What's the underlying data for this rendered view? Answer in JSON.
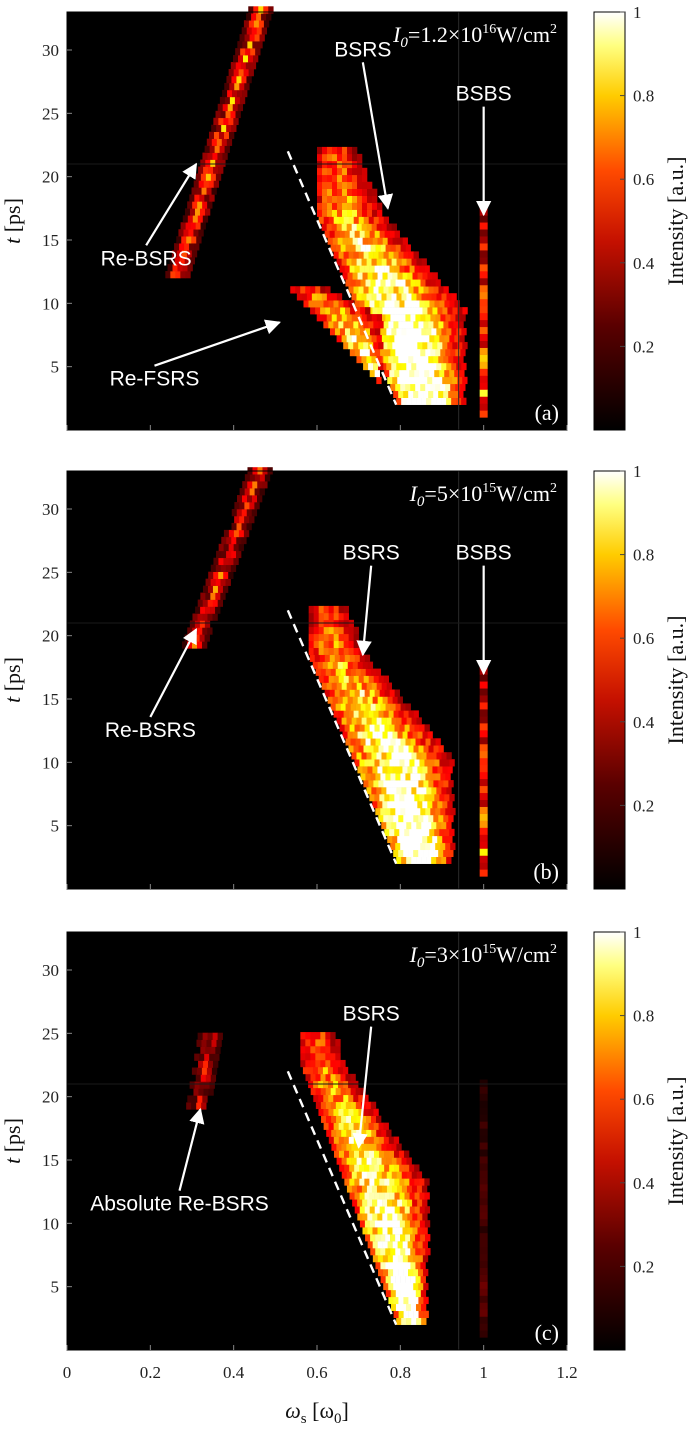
{
  "colors": {
    "background": "#000000",
    "annotation": "#ffffff",
    "dashed_line": "#ffffff"
  },
  "xlabel": {
    "sym": "ω",
    "sub": "s",
    "unit": "[ω",
    "unitsub": "0",
    "close": "]"
  },
  "chart_data": [
    {
      "type": "heatmap",
      "panel": "(a)",
      "title": {
        "sym": "I",
        "sub": "0",
        "text": "=1.2×10",
        "exp": "16",
        "unit": "W/cm",
        "unitexp": "2"
      },
      "ylabel": {
        "sym": "t",
        "unit": "[ps]"
      },
      "xlim": [
        0,
        1.2
      ],
      "ylim": [
        0,
        33
      ],
      "x_ticks": [
        "0",
        "0.2",
        "0.4",
        "0.6",
        "0.8",
        "1",
        "1.2"
      ],
      "y_ticks": [
        5,
        10,
        15,
        20,
        25,
        30
      ],
      "colorbar": {
        "label": "Intensity [a.u.]",
        "range": [
          0,
          1
        ],
        "ticks": [
          "0.2",
          "0.4",
          "0.6",
          "0.8",
          "1"
        ],
        "colormap": "hot"
      },
      "dashed_line": {
        "x": [
          0.53,
          0.79
        ],
        "y": [
          22,
          2
        ]
      },
      "annotations": [
        {
          "text": "Re-BSRS",
          "x": 0.19,
          "y": 13,
          "arrow_to": [
            0.31,
            21
          ]
        },
        {
          "text": "Re-FSRS",
          "x": 0.21,
          "y": 3.5,
          "arrow_to": [
            0.51,
            8.5
          ]
        },
        {
          "text": "BSRS",
          "x": 0.71,
          "y": 29.5,
          "arrow_to": [
            0.77,
            17.5
          ]
        },
        {
          "text": "BSBS",
          "x": 1.0,
          "y": 26,
          "arrow_to": [
            1.0,
            17
          ]
        }
      ],
      "intensity_features": [
        {
          "feature": "Re-BSRS branch",
          "x": [
            0.26,
            0.46
          ],
          "y": [
            12,
            33
          ],
          "peak": 0.8
        },
        {
          "feature": "BSRS main band",
          "x": [
            0.6,
            0.95
          ],
          "y": [
            2,
            22
          ],
          "peak": 1
        },
        {
          "feature": "Re-FSRS",
          "x": [
            0.42,
            0.75
          ],
          "y": [
            2,
            11
          ],
          "peak": 1
        },
        {
          "feature": "BSBS line",
          "x": [
            1.0,
            1.0
          ],
          "y": [
            1,
            17
          ],
          "peak": 0.9
        }
      ]
    },
    {
      "type": "heatmap",
      "panel": "(b)",
      "title": {
        "sym": "I",
        "sub": "0",
        "text": "=5×10",
        "exp": "15",
        "unit": "W/cm",
        "unitexp": "2"
      },
      "ylabel": {
        "sym": "t",
        "unit": "[ps]"
      },
      "xlim": [
        0,
        1.2
      ],
      "ylim": [
        0,
        33
      ],
      "x_ticks": [
        "0",
        "0.2",
        "0.4",
        "0.6",
        "0.8",
        "1",
        "1.2"
      ],
      "y_ticks": [
        5,
        10,
        15,
        20,
        25,
        30
      ],
      "colorbar": {
        "label": "Intensity [a.u.]",
        "range": [
          0,
          1
        ],
        "ticks": [
          "0.2",
          "0.4",
          "0.6",
          "0.8",
          "1"
        ],
        "colormap": "hot"
      },
      "dashed_line": {
        "x": [
          0.53,
          0.79
        ],
        "y": [
          22,
          2
        ]
      },
      "annotations": [
        {
          "text": "Re-BSRS",
          "x": 0.2,
          "y": 12,
          "arrow_to": [
            0.31,
            20.5
          ]
        },
        {
          "text": "BSRS",
          "x": 0.73,
          "y": 26,
          "arrow_to": [
            0.71,
            18.5
          ]
        },
        {
          "text": "BSBS",
          "x": 1.0,
          "y": 26,
          "arrow_to": [
            1.0,
            17
          ]
        }
      ],
      "intensity_features": [
        {
          "feature": "Re-BSRS branch",
          "x": [
            0.3,
            0.46
          ],
          "y": [
            19,
            33
          ],
          "peak": 0.7
        },
        {
          "feature": "BSRS main band",
          "x": [
            0.58,
            0.92
          ],
          "y": [
            2,
            22
          ],
          "peak": 1
        },
        {
          "feature": "BSBS line",
          "x": [
            1.0,
            1.0
          ],
          "y": [
            1,
            17
          ],
          "peak": 0.85
        }
      ]
    },
    {
      "type": "heatmap",
      "panel": "(c)",
      "title": {
        "sym": "I",
        "sub": "0",
        "text": "=3×10",
        "exp": "15",
        "unit": "W/cm",
        "unitexp": "2"
      },
      "ylabel": {
        "sym": "t",
        "unit": "[ps]"
      },
      "xlim": [
        0,
        1.2
      ],
      "ylim": [
        0,
        33
      ],
      "x_ticks": [
        "0",
        "0.2",
        "0.4",
        "0.6",
        "0.8",
        "1",
        "1.2"
      ],
      "y_ticks": [
        5,
        10,
        15,
        20,
        25,
        30
      ],
      "colorbar": {
        "label": "Intensity [a.u.]",
        "range": [
          0,
          1
        ],
        "ticks": [
          "0.2",
          "0.4",
          "0.6",
          "0.8",
          "1"
        ],
        "colormap": "hot"
      },
      "dashed_line": {
        "x": [
          0.53,
          0.79
        ],
        "y": [
          22,
          2
        ]
      },
      "annotations": [
        {
          "text": "Absolute Re-BSRS",
          "x": 0.27,
          "y": 11,
          "arrow_to": [
            0.32,
            19
          ]
        },
        {
          "text": "BSRS",
          "x": 0.73,
          "y": 26,
          "arrow_to": [
            0.7,
            16
          ]
        }
      ],
      "intensity_features": [
        {
          "feature": "Absolute Re-BSRS",
          "x": [
            0.31,
            0.34
          ],
          "y": [
            19,
            25
          ],
          "peak": 0.5
        },
        {
          "feature": "BSRS main band",
          "x": [
            0.56,
            0.86
          ],
          "y": [
            2,
            25
          ],
          "peak": 1
        },
        {
          "feature": "BSBS line",
          "x": [
            1.0,
            1.0
          ],
          "y": [
            1,
            21
          ],
          "peak": 0.2
        }
      ]
    }
  ]
}
